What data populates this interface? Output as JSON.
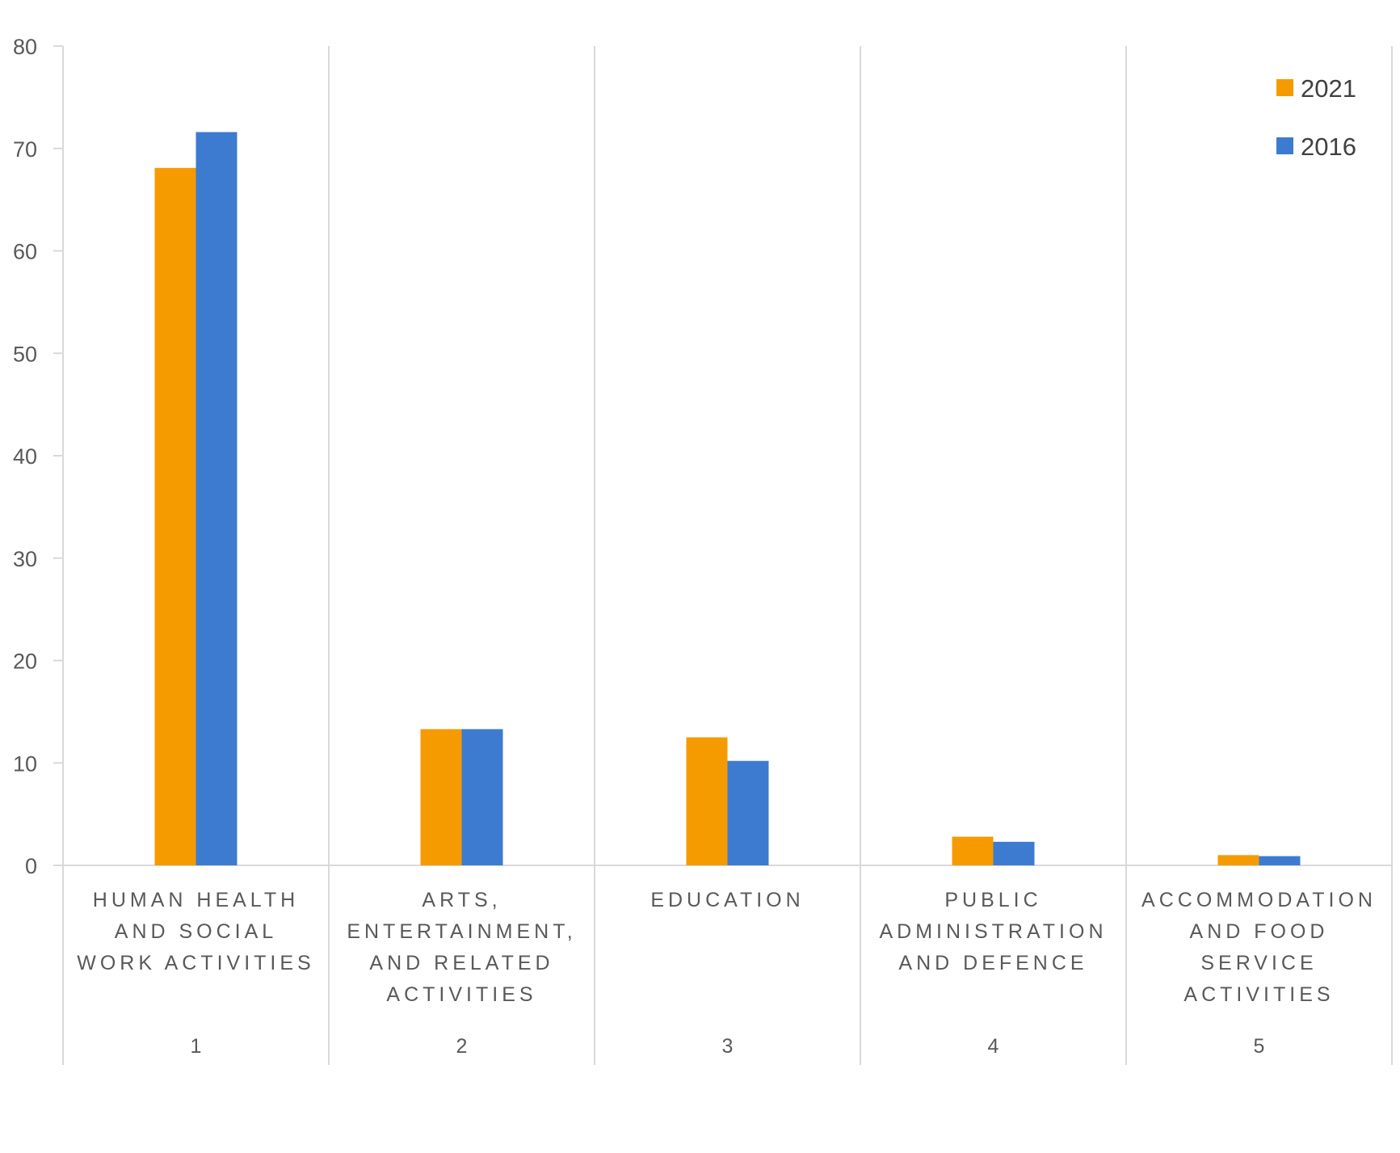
{
  "chart_data": {
    "type": "bar",
    "categories": [
      "HUMAN HEALTH AND SOCIAL WORK ACTIVITIES",
      "ARTS, ENTERTAINMENT, AND RELATED ACTIVITIES",
      "EDUCATION",
      "PUBLIC ADMINISTRATION AND DEFENCE",
      "ACCOMMODATION AND FOOD SERVICE ACTIVITIES"
    ],
    "category_label_lines": [
      [
        "HUMAN HEALTH",
        "AND SOCIAL",
        "WORK ACTIVITIES"
      ],
      [
        "ARTS,",
        "ENTERTAINMENT,",
        "AND RELATED",
        "ACTIVITIES"
      ],
      [
        "EDUCATION"
      ],
      [
        "PUBLIC",
        "ADMINISTRATION",
        "AND DEFENCE"
      ],
      [
        "ACCOMMODATION",
        "AND FOOD",
        "SERVICE",
        "ACTIVITIES"
      ]
    ],
    "category_index": [
      "1",
      "2",
      "3",
      "4",
      "5"
    ],
    "series": [
      {
        "name": "2021",
        "color": "#F59B00",
        "values": [
          68.1,
          13.3,
          12.5,
          2.8,
          1.0
        ]
      },
      {
        "name": "2016",
        "color": "#3C7BD0",
        "values": [
          71.6,
          13.3,
          10.2,
          2.3,
          0.9
        ]
      }
    ],
    "ylim": [
      0,
      80
    ],
    "yticks": [
      0,
      10,
      20,
      30,
      40,
      50,
      60,
      70,
      80
    ],
    "title": "",
    "xlabel": "",
    "ylabel": "",
    "grid": "vertical category separators",
    "legend_position": "top-right"
  }
}
